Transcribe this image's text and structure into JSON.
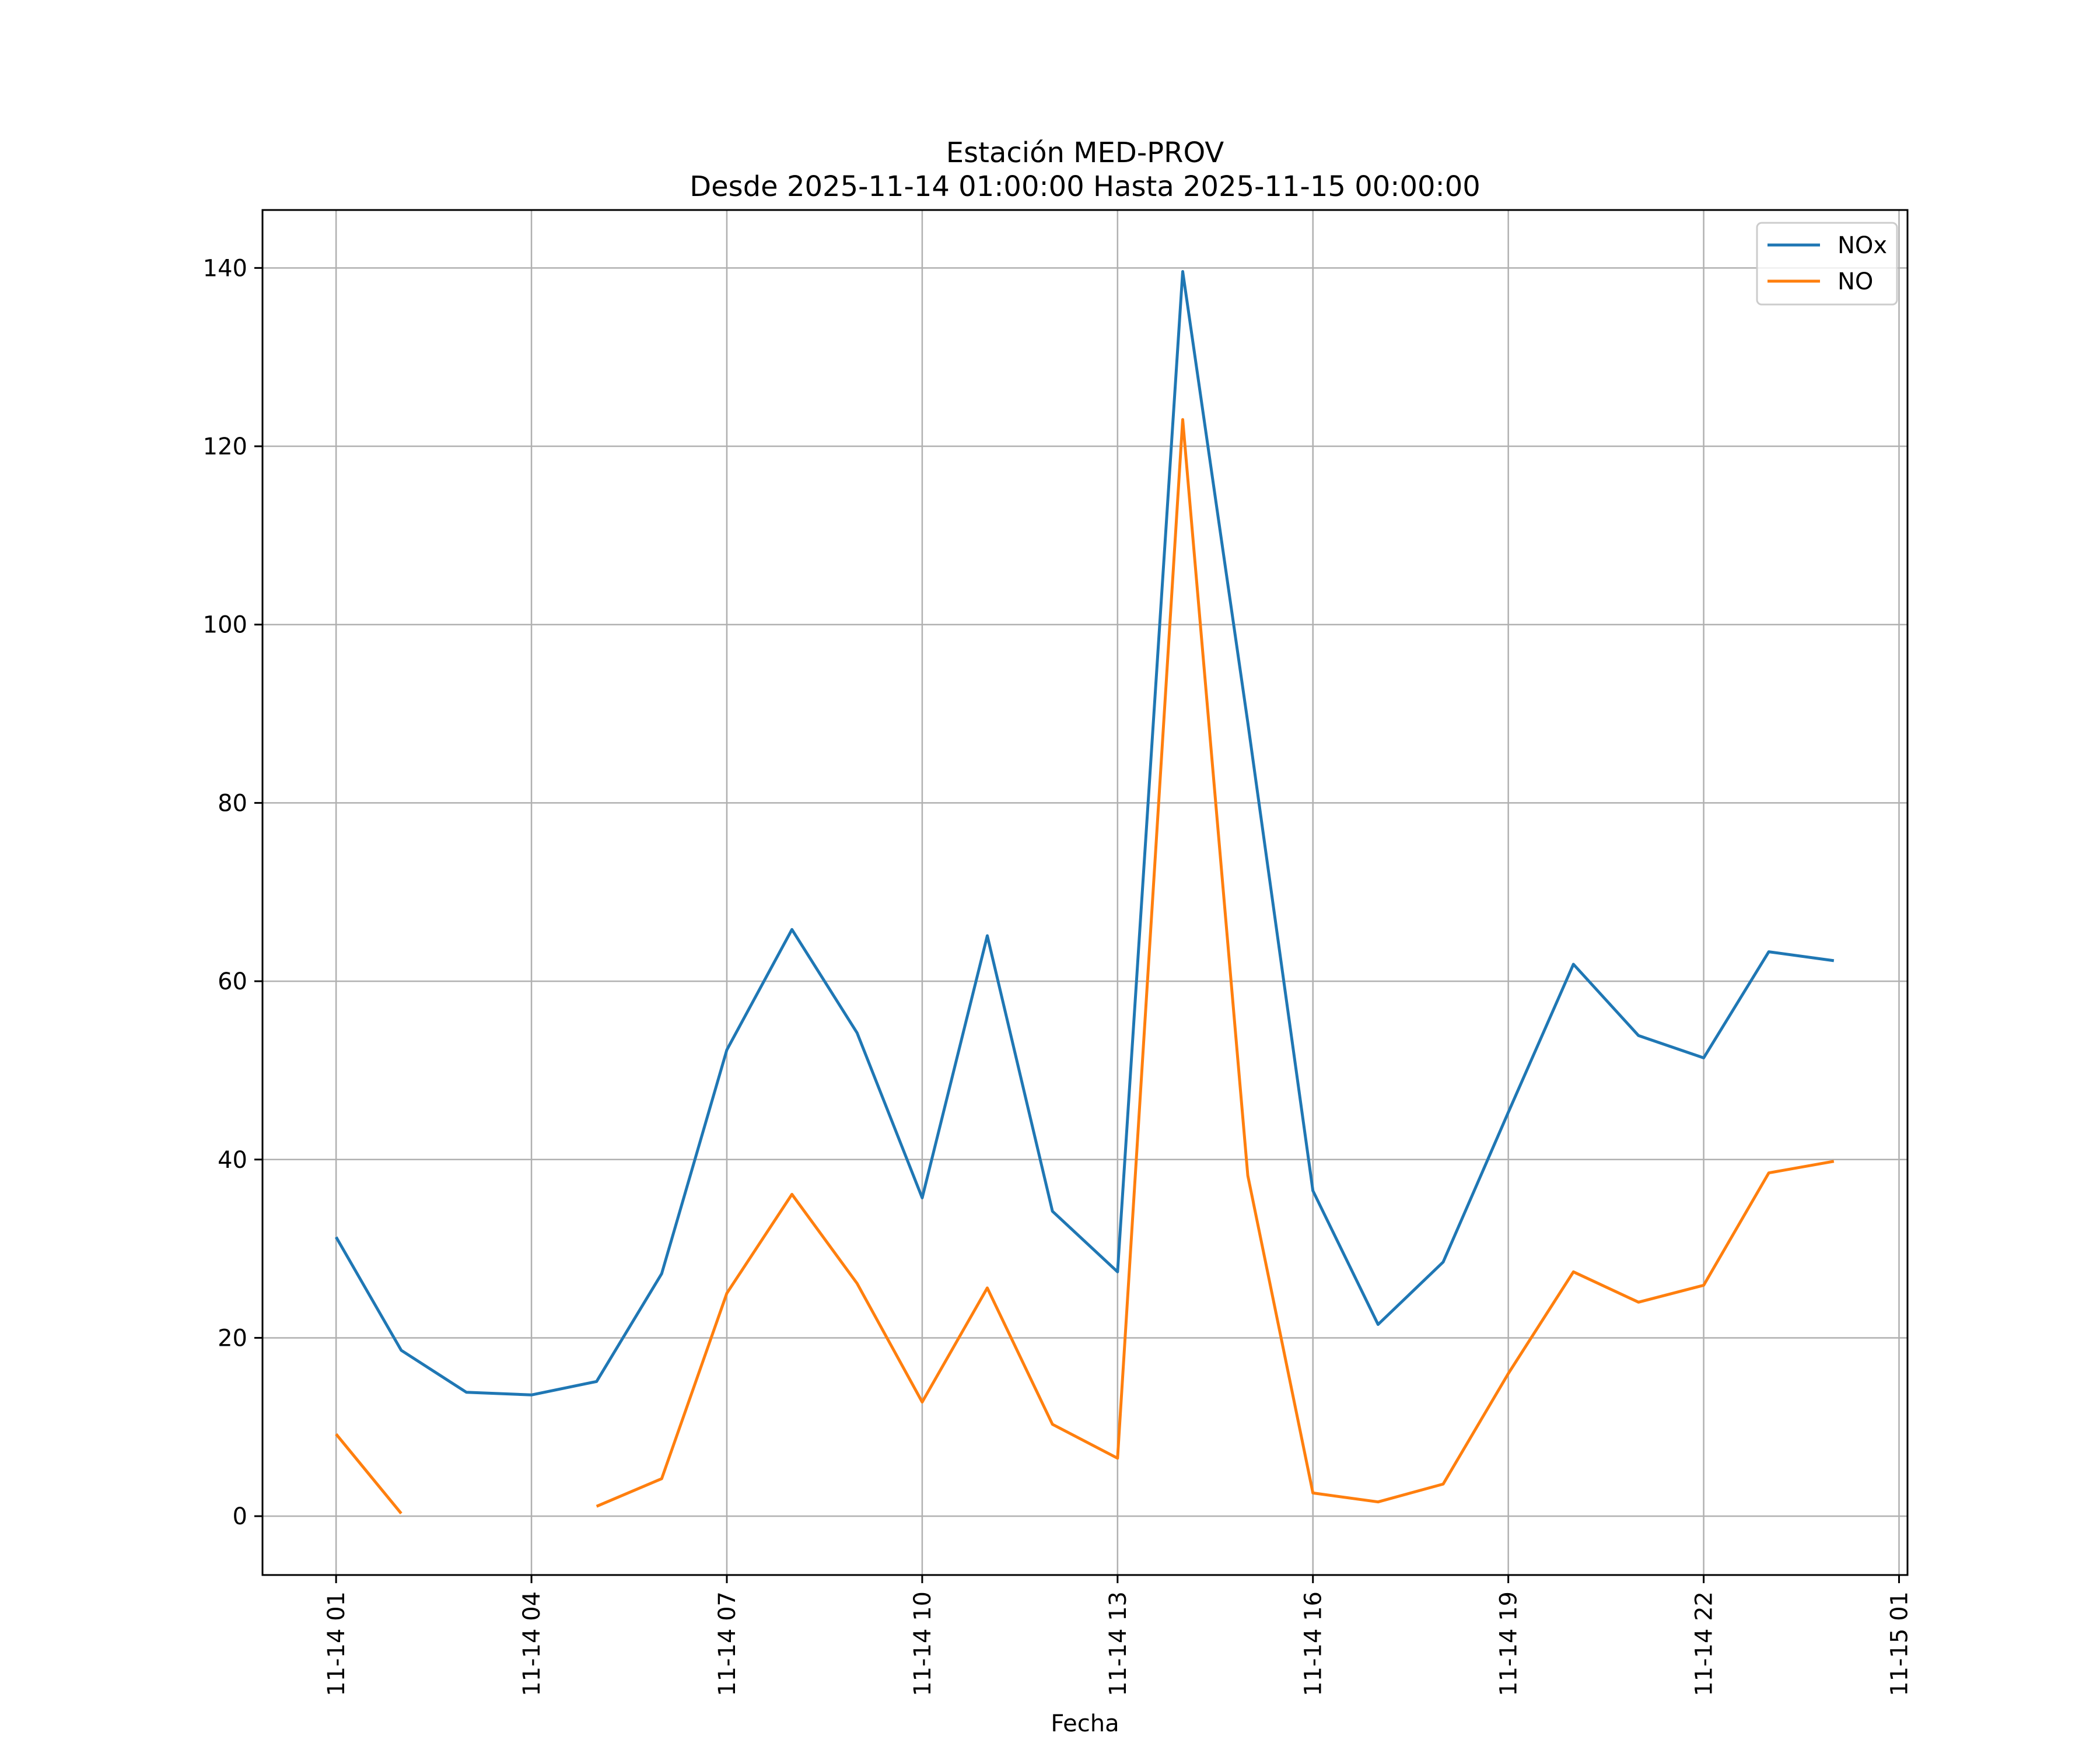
{
  "chart_data": {
    "type": "line",
    "title": "Estación MED-PROV",
    "subtitle": "Desde 2025-11-14 01:00:00 Hasta 2025-11-15 00:00:00",
    "xlabel": "Fecha",
    "ylabel": "",
    "x_hours": [
      1,
      2,
      3,
      4,
      5,
      6,
      7,
      8,
      9,
      10,
      11,
      12,
      13,
      14,
      15,
      16,
      17,
      18,
      19,
      20,
      21,
      22,
      23,
      24
    ],
    "xlim": [
      -0.13,
      25.13
    ],
    "ylim": [
      -6.6,
      146.5
    ],
    "grid": true,
    "legend_position": "top-right",
    "xticks": [
      {
        "hour": 1,
        "label": "11-14 01"
      },
      {
        "hour": 4,
        "label": "11-14 04"
      },
      {
        "hour": 7,
        "label": "11-14 07"
      },
      {
        "hour": 10,
        "label": "11-14 10"
      },
      {
        "hour": 13,
        "label": "11-14 13"
      },
      {
        "hour": 16,
        "label": "11-14 16"
      },
      {
        "hour": 19,
        "label": "11-14 19"
      },
      {
        "hour": 22,
        "label": "11-14 22"
      },
      {
        "hour": 25,
        "label": "11-15 01"
      }
    ],
    "yticks": [
      {
        "value": 0,
        "label": "0"
      },
      {
        "value": 20,
        "label": "20"
      },
      {
        "value": 40,
        "label": "40"
      },
      {
        "value": 60,
        "label": "60"
      },
      {
        "value": 80,
        "label": "80"
      },
      {
        "value": 100,
        "label": "100"
      },
      {
        "value": 120,
        "label": "120"
      },
      {
        "value": 140,
        "label": "140"
      }
    ],
    "series": [
      {
        "name": "NOx",
        "color": "#1f77b4",
        "values": [
          31.3,
          18.6,
          13.9,
          13.6,
          15.1,
          27.2,
          52.3,
          65.8,
          54.2,
          35.7,
          65.1,
          34.2,
          27.4,
          139.6,
          89.0,
          36.5,
          21.5,
          28.5,
          45.3,
          61.9,
          53.9,
          51.4,
          63.3,
          62.3
        ]
      },
      {
        "name": "NO",
        "color": "#ff7f0e",
        "values": [
          9.2,
          0.3,
          null,
          null,
          1.1,
          4.2,
          25.0,
          36.1,
          26.1,
          12.8,
          25.6,
          10.3,
          6.5,
          123.0,
          38.2,
          2.6,
          1.6,
          3.6,
          16.0,
          27.4,
          24.0,
          25.9,
          38.5,
          39.8
        ]
      }
    ]
  }
}
